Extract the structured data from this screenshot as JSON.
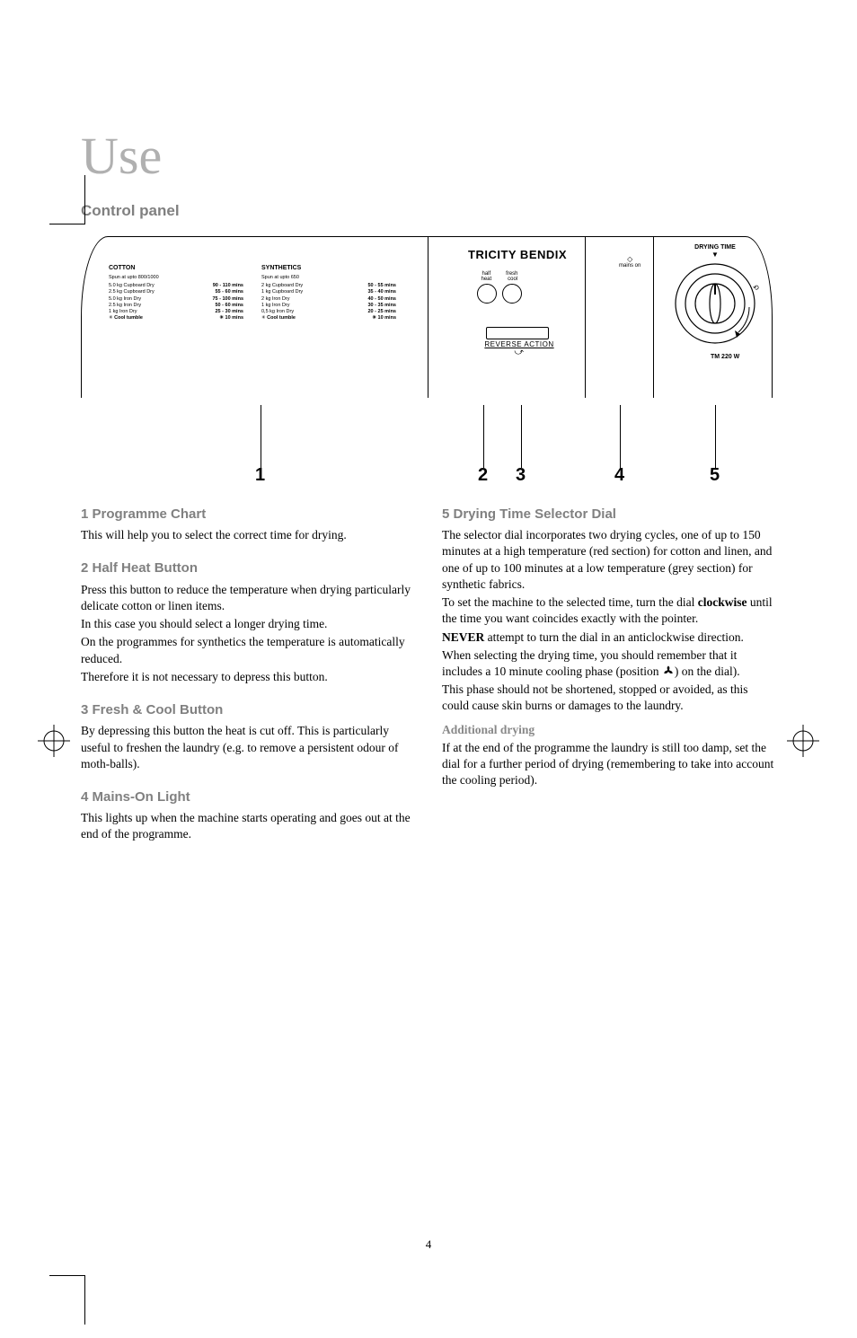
{
  "page": {
    "title": "Use",
    "subtitle": "Control panel",
    "pagenum": "4",
    "title_color": "#b0b0b0",
    "heading_color": "#808080"
  },
  "panel": {
    "brand": "TRICITY BENDIX",
    "model": "TM 220 W",
    "cotton": {
      "head": "COTTON",
      "sub": "Spun at upto 800/1000",
      "rows": [
        {
          "l": "5.0 kg  Cupboard Dry",
          "r": "90 - 110  mins"
        },
        {
          "l": "2.5 kg  Cupboard Dry",
          "r": "55 - 60  mins"
        },
        {
          "l": "5.0 kg  Iron Dry",
          "r": "75 - 100  mins"
        },
        {
          "l": "2.5 kg  Iron Dry",
          "r": "50 - 60  mins"
        },
        {
          "l": "1  kg  Iron Dry",
          "r": "25 - 30  mins"
        }
      ],
      "cool": {
        "l": "Cool tumble",
        "r": "10  mins"
      }
    },
    "synthetics": {
      "head": "SYNTHETICS",
      "sub": "Spun at upto 650",
      "rows": [
        {
          "l": "2  kg  Cupboard Dry",
          "r": "50 - 55  mins"
        },
        {
          "l": "1  kg  Cupboard Dry",
          "r": "35 - 40  mins"
        },
        {
          "l": "2  kg  Iron Dry",
          "r": "40 - 50  mins"
        },
        {
          "l": "1  kg  Iron Dry",
          "r": "30 - 35  mins"
        },
        {
          "l": "0,5 kg  Iron Dry",
          "r": "20 - 25  mins"
        }
      ],
      "cool": {
        "l": "Cool tumble",
        "r": "10  mins"
      }
    },
    "knob_left": "half\nheat",
    "knob_right": "fresh\n cool",
    "reverse": "REVERSE\nACTION",
    "mains": "mains on",
    "dial_title": "DRYING TIME"
  },
  "callouts": [
    "1",
    "2",
    "3",
    "4",
    "5"
  ],
  "sections": [
    {
      "h": "1 Programme Chart",
      "body": [
        "This will help you to select the correct time for drying."
      ]
    },
    {
      "h": "2 Half Heat Button",
      "body": [
        "Press this button to reduce the temperature when drying particularly delicate cotton or linen items.",
        "In this case you should select a longer drying time.",
        "On the programmes for synthetics the temperature is automatically reduced.",
        "Therefore it is not necessary to depress this button."
      ]
    },
    {
      "h": "3 Fresh & Cool Button",
      "body": [
        "By depressing this button the heat is cut off. This is particularly useful to freshen the laundry (e.g. to remove a persistent odour of moth-balls)."
      ]
    },
    {
      "h": "4 Mains-On Light",
      "body": [
        "This lights up when the machine starts operating and goes out at the end of the programme."
      ]
    }
  ],
  "section5": {
    "h": "5 Drying Time Selector Dial",
    "body1": [
      "The selector dial incorporates two drying cycles, one of up to 150 minutes at a high temperature (red section) for cotton and linen, and one of up to 100 minutes at a low temperature (grey section) for synthetic fabrics.",
      "To set the machine to the selected time, turn the dial <b>clockwise</b> until the time you want coincides exactly with the pointer.",
      "<b>NEVER</b> attempt to turn the dial in an anticlockwise direction."
    ],
    "fan_line_before": "When selecting the drying time, you should remember that it includes a 10 minute cooling phase (position ",
    "fan_line_after": ") on the dial).",
    "body2": [
      "This phase should not be shortened, stopped or avoided, as this could cause skin burns or damages to the laundry."
    ],
    "subh": "Additional drying",
    "body3": [
      "If at the end of the programme the laundry is still too damp, set the dial for a further period of drying (remembering to take into account the cooling period)."
    ]
  }
}
